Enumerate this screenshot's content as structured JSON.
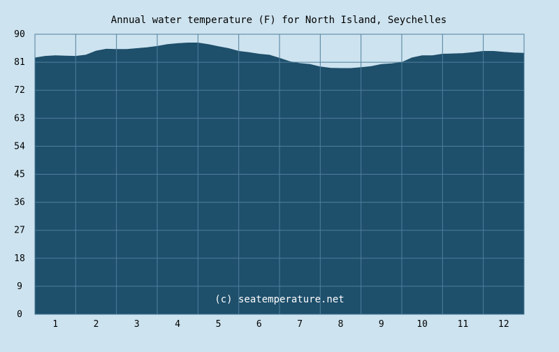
{
  "chart_data": {
    "type": "area",
    "title": "Annual water temperature (F) for North Island, Seychelles",
    "xlabel": "",
    "ylabel": "",
    "categories": [
      "1",
      "2",
      "3",
      "4",
      "5",
      "6",
      "7",
      "8",
      "9",
      "10",
      "11",
      "12"
    ],
    "yticks": [
      0,
      9,
      18,
      27,
      36,
      45,
      54,
      63,
      72,
      81,
      90
    ],
    "ylim": [
      0,
      90
    ],
    "xlim": [
      0.5,
      12.5
    ],
    "grid": true,
    "x": [
      0.5,
      0.75,
      1.0,
      1.25,
      1.5,
      1.75,
      2.0,
      2.25,
      2.5,
      2.75,
      3.0,
      3.25,
      3.5,
      3.75,
      4.0,
      4.25,
      4.5,
      4.75,
      5.0,
      5.25,
      5.5,
      5.75,
      6.0,
      6.25,
      6.5,
      6.75,
      7.0,
      7.25,
      7.5,
      7.75,
      8.0,
      8.25,
      8.5,
      8.75,
      9.0,
      9.25,
      9.5,
      9.75,
      10.0,
      10.25,
      10.5,
      10.75,
      11.0,
      11.25,
      11.5,
      11.75,
      12.0,
      12.25,
      12.5
    ],
    "y": [
      82.4,
      82.9,
      83.1,
      83.0,
      82.9,
      83.3,
      84.6,
      85.2,
      85.1,
      85.1,
      85.4,
      85.7,
      86.1,
      86.7,
      87.0,
      87.2,
      87.2,
      86.7,
      86.0,
      85.4,
      84.5,
      84.1,
      83.6,
      83.3,
      82.3,
      81.2,
      80.6,
      80.3,
      79.5,
      79.1,
      79.0,
      79.0,
      79.3,
      79.6,
      80.3,
      80.5,
      80.9,
      82.4,
      83.1,
      83.1,
      83.6,
      83.7,
      83.8,
      84.1,
      84.5,
      84.5,
      84.2,
      84.0,
      83.9
    ],
    "annotation": "(c) seatemperature.net",
    "colors": {
      "background": "#cde3ef",
      "fill": "#1e4f6b",
      "plot_bg": "#cde3ef",
      "grid": "#4f7f9c",
      "text": "#000000",
      "annotation_text": "#ffffff"
    }
  }
}
